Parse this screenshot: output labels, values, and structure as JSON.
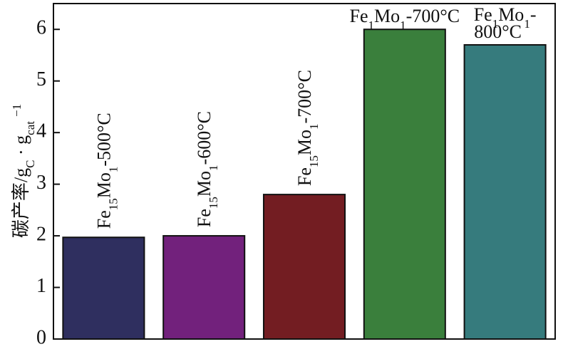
{
  "chart_data": {
    "type": "bar",
    "ylabel": [
      "碳产率/g",
      "C",
      " · g",
      "cat",
      "−1"
    ],
    "categories": [
      [
        "Fe",
        "15",
        "Mo",
        "1",
        "-500°C"
      ],
      [
        "Fe",
        "15",
        "Mo",
        "1",
        "-600°C"
      ],
      [
        "Fe",
        "15",
        "Mo",
        "1",
        "-700°C"
      ],
      [
        "Fe",
        "1",
        "Mo",
        "1",
        "-700°C"
      ],
      [
        "Fe",
        "1",
        "Mo",
        "1",
        "-",
        "800°C"
      ]
    ],
    "values": [
      1.97,
      2.0,
      2.8,
      6.0,
      5.7
    ],
    "colors": [
      "#2f2f5f",
      "#72217c",
      "#731d22",
      "#3a7f3c",
      "#367b7d"
    ],
    "ylim": [
      0,
      6.5
    ],
    "yticks": [
      0,
      1,
      2,
      3,
      4,
      5,
      6
    ]
  }
}
